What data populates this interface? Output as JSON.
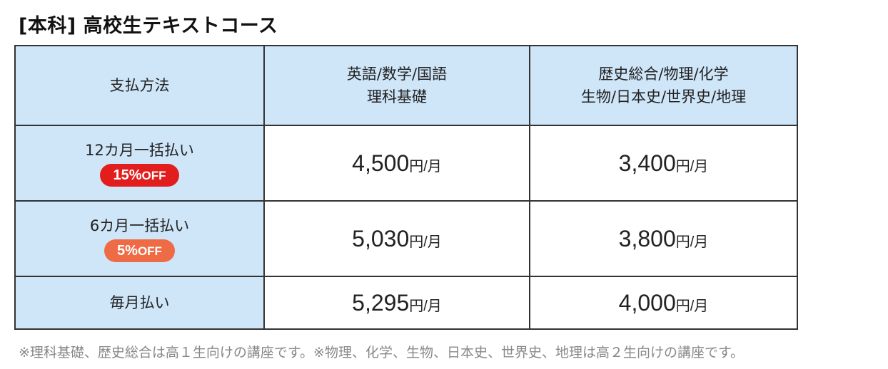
{
  "title": "[本科] 高校生テキストコース",
  "table": {
    "header": {
      "method": "支払方法",
      "col2_line1": "英語/数学/国語",
      "col2_line2": "理科基礎",
      "col3_line1": "歴史総合/物理/化学",
      "col3_line2": "生物/日本史/世界史/地理"
    },
    "rows": [
      {
        "method": "12カ月一括払い",
        "badge_num": "15%",
        "badge_txt": "OFF",
        "badge_color": "#e21d1d",
        "price_a": "4,500",
        "price_b": "3,400",
        "unit": "円/月"
      },
      {
        "method": "6カ月一括払い",
        "badge_num": "5%",
        "badge_txt": "OFF",
        "badge_color": "#ee6b46",
        "price_a": "5,030",
        "price_b": "3,800",
        "unit": "円/月"
      },
      {
        "method": "毎月払い",
        "price_a": "5,295",
        "price_b": "4,000",
        "unit": "円/月"
      }
    ]
  },
  "note": "※理科基礎、歴史総合は高１生向けの講座です。※物理、化学、生物、日本史、世界史、地理は高２生向けの講座です。",
  "colors": {
    "header_bg": "#cfe5f8",
    "border": "#333333",
    "note_text": "#888888"
  }
}
